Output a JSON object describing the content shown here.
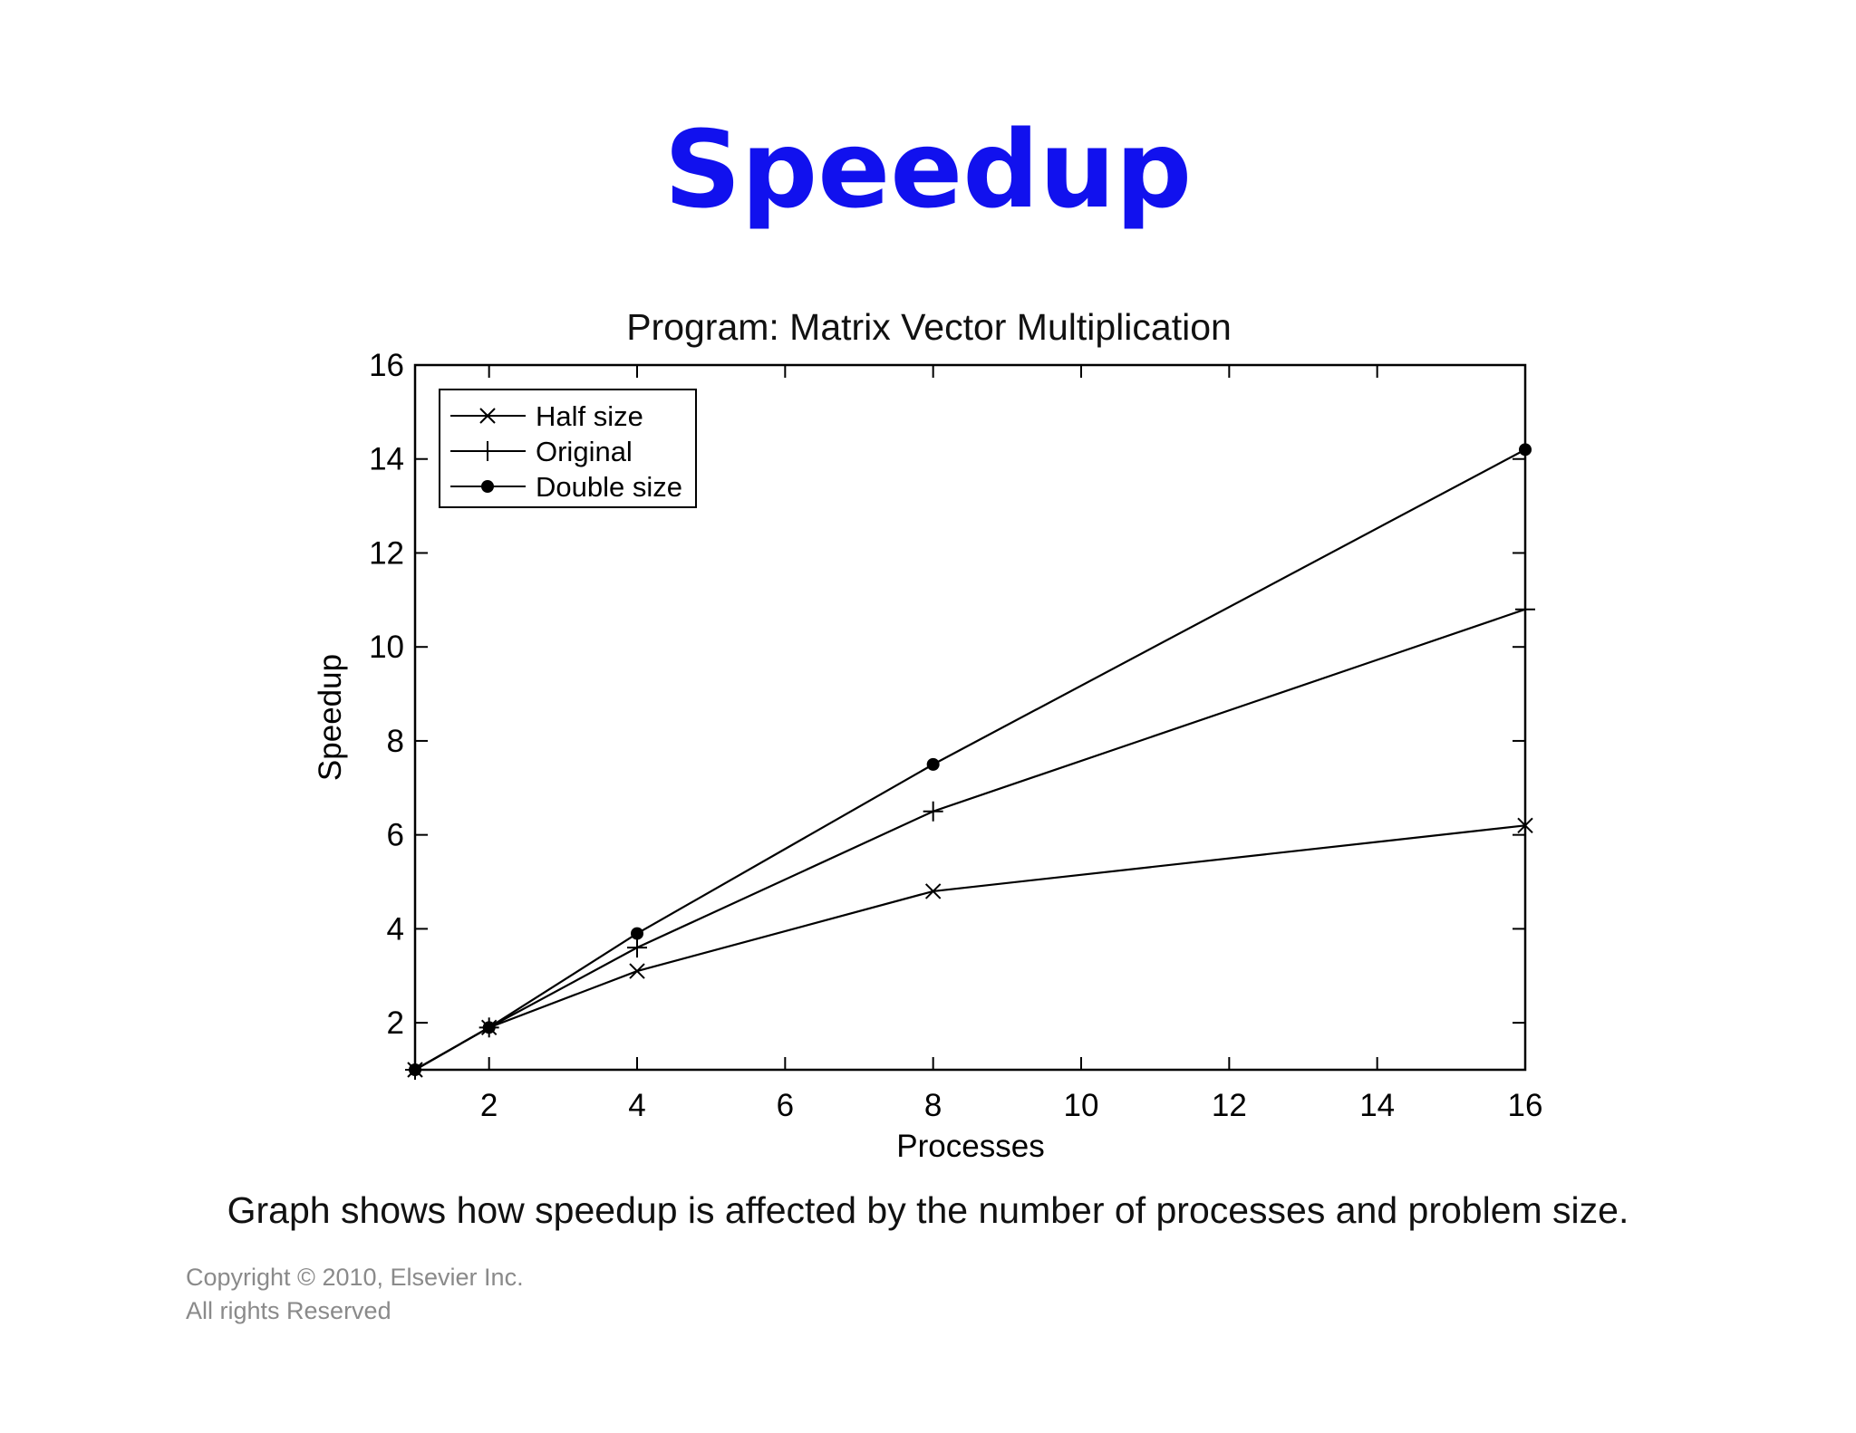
{
  "slide": {
    "title": "Speedup",
    "caption": "Graph shows how speedup is affected by the number of processes and problem size.",
    "copyright_line1": "Copyright © 2010, Elsevier Inc.",
    "copyright_line2": "All rights Reserved",
    "title_color": "#1111ee"
  },
  "chart_data": {
    "type": "line",
    "title": "Program: Matrix Vector Multiplication",
    "xlabel": "Processes",
    "ylabel": "Speedup",
    "xlim": [
      1,
      16
    ],
    "ylim": [
      1,
      16
    ],
    "xticks": [
      2,
      4,
      6,
      8,
      10,
      12,
      14,
      16
    ],
    "yticks": [
      2,
      4,
      6,
      8,
      10,
      12,
      14,
      16
    ],
    "grid": false,
    "legend_position": "top-left",
    "series": [
      {
        "name": "Half size",
        "marker": "x",
        "x": [
          1,
          2,
          4,
          8,
          16
        ],
        "y": [
          1.0,
          1.9,
          3.1,
          4.8,
          6.2
        ]
      },
      {
        "name": "Original",
        "marker": "plus",
        "x": [
          1,
          2,
          4,
          8,
          16
        ],
        "y": [
          1.0,
          1.9,
          3.6,
          6.5,
          10.8
        ]
      },
      {
        "name": "Double size",
        "marker": "dot",
        "x": [
          1,
          2,
          4,
          8,
          16
        ],
        "y": [
          1.0,
          1.9,
          3.9,
          7.5,
          14.2
        ]
      }
    ]
  }
}
